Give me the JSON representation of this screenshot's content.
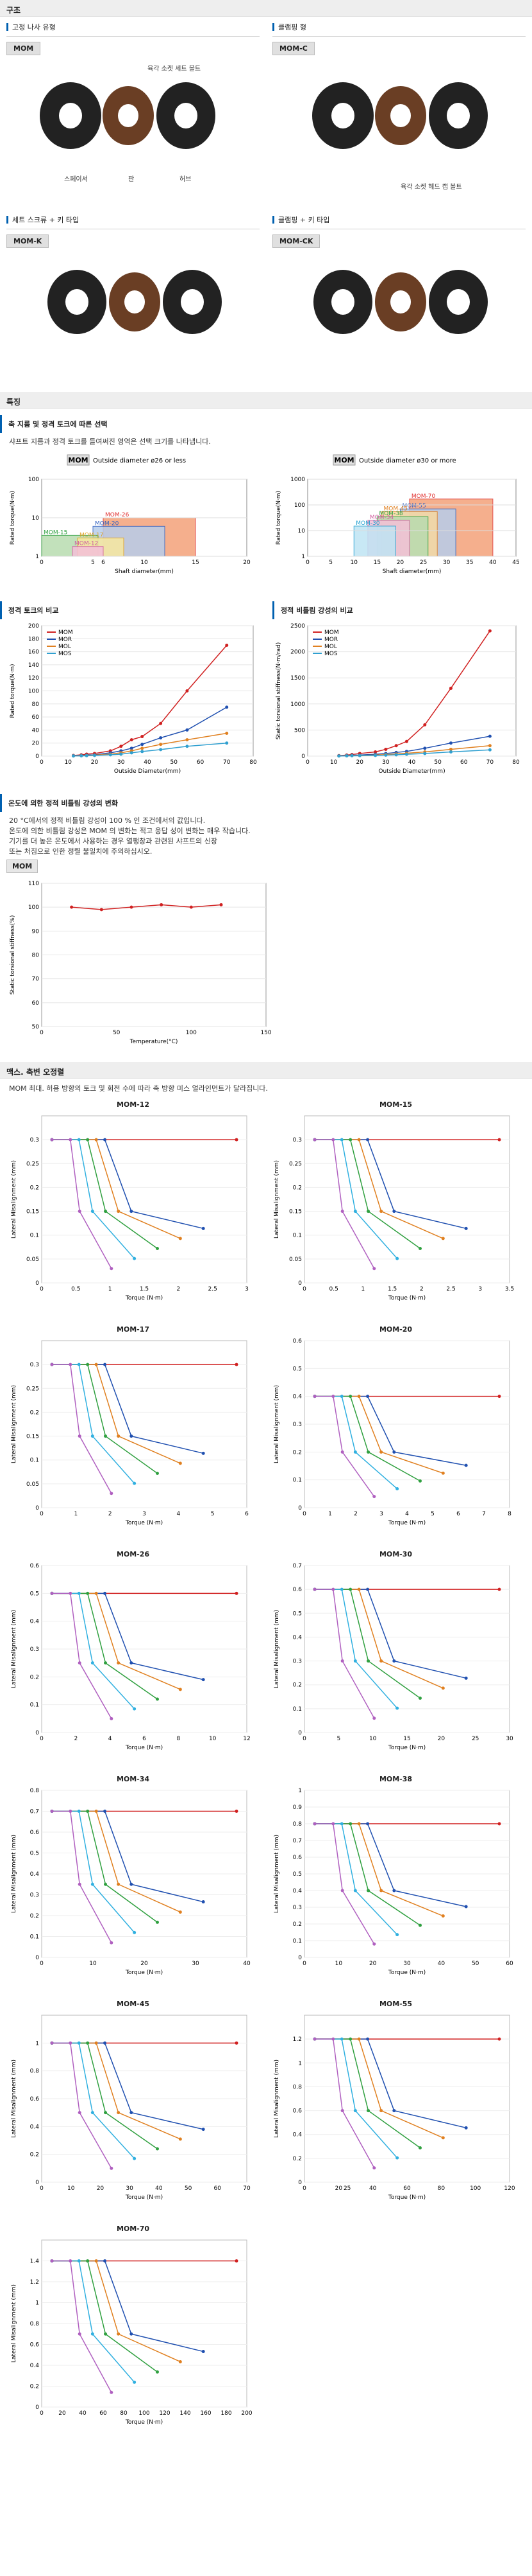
{
  "structure": {
    "section_title": "구조",
    "items": [
      {
        "caption": "고정 나사 유형",
        "tag": "MOM",
        "labels": [
          "육각 소켓 세트 볼트",
          "스페이서",
          "판",
          "허브"
        ]
      },
      {
        "caption": "클램핑 형",
        "tag": "MOM-C",
        "labels": [
          "육각 소켓 헤드 캡 볼트"
        ]
      },
      {
        "caption": "세트 스크류 + 키 타입",
        "tag": "MOM-K",
        "labels": []
      },
      {
        "caption": "클램핑 + 키 타입",
        "tag": "MOM-CK",
        "labels": []
      }
    ]
  },
  "features": {
    "section_title": "특징",
    "sub1": "축 지름 및 정격 토크에 따른 선택",
    "sub1_text": "샤프트 지름과 정격 토크를 들여써진 영역은 선택 크기를 나타냅니다.",
    "sub2": "정격 토크의 비교",
    "sub3": "정적 비틀림 강성의 비교",
    "sub4": "온도에 의한 정적 비틀림 강성의 변화",
    "sub4_text": [
      "20 °C에서의 정적 비틀림 강성이 100 % 인 조건에서의 값입니다.",
      "온도에 의한 비틀림 강성은 MOM 의 변화는 적고 응답 성이 변화는 매우 작습니다.",
      "기기를 더 높은 온도에서 사용하는 경우 열팽창과 관련된 샤프트의 신장",
      "또는 처짐으로 인한 정렬 불일치에 주의하십시오."
    ]
  },
  "selection_small": {
    "chart_data": {
      "type": "bar",
      "title_tag": "MOM",
      "title": "Outside diameter ø26 or less",
      "xlabel": "Shaft diameter(mm)",
      "ylabel": "Rated torque(N·m)",
      "xticks": [
        0,
        5,
        6,
        10,
        15,
        20
      ],
      "yticks": [
        1,
        10,
        100
      ],
      "regions": [
        {
          "name": "MOM-26",
          "x0": 6,
          "x1": 15,
          "y": 10,
          "color": "#f4a27a",
          "line": "#e03030"
        },
        {
          "name": "MOM-20",
          "x0": 5,
          "x1": 12,
          "y": 6,
          "color": "#b7cdea",
          "line": "#3060c0"
        },
        {
          "name": "MOM-15",
          "x0": 0,
          "x1": 5.5,
          "y": 3.5,
          "color": "#b8dcb0",
          "line": "#30a040"
        },
        {
          "name": "MOM-17",
          "x0": 3.5,
          "x1": 8,
          "y": 3,
          "color": "#f8e8a0",
          "line": "#e0a020"
        },
        {
          "name": "MOM-12",
          "x0": 3,
          "x1": 6,
          "y": 1.8,
          "color": "#f4c0d8",
          "line": "#d060a0"
        }
      ]
    }
  },
  "selection_large": {
    "chart_data": {
      "type": "bar",
      "title_tag": "MOM",
      "title": "Outside diameter ø30 or more",
      "xlabel": "Shaft diameter(mm)",
      "ylabel": "Rated torque(N·m)",
      "xticks": [
        0,
        5,
        10,
        15,
        20,
        25,
        30,
        35,
        40,
        45
      ],
      "yticks": [
        1,
        10,
        100,
        1000
      ],
      "regions": [
        {
          "name": "MOM-70",
          "x0": 22,
          "x1": 40,
          "y": 170,
          "color": "#f4a27a",
          "line": "#e03030"
        },
        {
          "name": "MOM-55",
          "x0": 20,
          "x1": 32,
          "y": 70,
          "color": "#b7cdea",
          "line": "#3060c0"
        },
        {
          "name": "MOM-45",
          "x0": 16,
          "x1": 28,
          "y": 55,
          "color": "#f8d8a0",
          "line": "#e08020"
        },
        {
          "name": "MOM-38",
          "x0": 15,
          "x1": 26,
          "y": 35,
          "color": "#b8dcb0",
          "line": "#30a040"
        },
        {
          "name": "MOM-34",
          "x0": 13,
          "x1": 22,
          "y": 25,
          "color": "#f4c0d8",
          "line": "#d060a0"
        },
        {
          "name": "MOM-30",
          "x0": 10,
          "x1": 19,
          "y": 15,
          "color": "#bfe4f4",
          "line": "#20a0d0"
        }
      ]
    }
  },
  "rated_torque": {
    "chart_data": {
      "type": "line",
      "xlabel": "Outside Diameter(mm)",
      "ylabel": "Rated torque(N·m)",
      "xlim": [
        0,
        80
      ],
      "ylim": [
        0,
        200
      ],
      "xticks": [
        0,
        10,
        20,
        30,
        40,
        50,
        60,
        70,
        80
      ],
      "yticks": [
        0,
        20,
        40,
        60,
        80,
        100,
        120,
        140,
        160,
        180,
        200
      ],
      "x": [
        12,
        15,
        17,
        20,
        26,
        30,
        34,
        38,
        45,
        55,
        70
      ],
      "series": [
        {
          "name": "MOM",
          "color": "#d02020",
          "values": [
            1,
            2,
            3,
            4,
            8,
            15,
            25,
            30,
            50,
            100,
            170
          ]
        },
        {
          "name": "MOR",
          "color": "#2050b0",
          "values": [
            0.5,
            1,
            1.5,
            2,
            5,
            8,
            12,
            18,
            28,
            40,
            75
          ]
        },
        {
          "name": "MOL",
          "color": "#e08020",
          "values": [
            0.3,
            0.6,
            1,
            1.5,
            3,
            5,
            8,
            12,
            18,
            25,
            35
          ]
        },
        {
          "name": "MOS",
          "color": "#30a0d0",
          "values": [
            0.2,
            0.4,
            0.6,
            1,
            2,
            3,
            5,
            7,
            10,
            15,
            20
          ]
        }
      ]
    }
  },
  "stiffness": {
    "chart_data": {
      "type": "line",
      "xlabel": "Outside Diameter(mm)",
      "ylabel": "Static torsional stiffness(N·m/rad)",
      "xlim": [
        0,
        80
      ],
      "ylim": [
        0,
        2500
      ],
      "xticks": [
        0,
        10,
        20,
        30,
        40,
        50,
        60,
        70,
        80
      ],
      "x": [
        12,
        15,
        17,
        20,
        26,
        30,
        34,
        38,
        45,
        55,
        70
      ],
      "series": [
        {
          "name": "MOM",
          "color": "#d02020",
          "values": [
            10,
            20,
            30,
            50,
            80,
            130,
            200,
            280,
            600,
            1300,
            2400
          ]
        },
        {
          "name": "MOR",
          "color": "#2050b0",
          "values": [
            5,
            10,
            15,
            20,
            35,
            50,
            70,
            90,
            150,
            250,
            380
          ]
        },
        {
          "name": "MOL",
          "color": "#e08020",
          "values": [
            3,
            6,
            9,
            12,
            20,
            30,
            40,
            55,
            80,
            130,
            200
          ]
        },
        {
          "name": "MOS",
          "color": "#30a0d0",
          "values": [
            2,
            4,
            6,
            8,
            12,
            18,
            25,
            35,
            50,
            80,
            120
          ]
        }
      ]
    }
  },
  "temperature": {
    "tag": "MOM",
    "chart_data": {
      "type": "line",
      "xlabel": "Temperature(°C)",
      "ylabel": "Static torsional stiffness(%)",
      "xlim": [
        0,
        150
      ],
      "ylim": [
        50,
        110
      ],
      "xticks": [
        0,
        50,
        100,
        150
      ],
      "yticks": [
        50,
        60,
        70,
        80,
        90,
        100,
        110
      ],
      "x": [
        20,
        40,
        60,
        80,
        100,
        120
      ],
      "series": [
        {
          "name": "MOM",
          "color": "#d02020",
          "values": [
            100,
            99,
            100,
            101,
            100,
            101
          ]
        }
      ]
    }
  },
  "misalignment": {
    "section_title": "맥스. 축변 오정렬",
    "text": "MOM 최대. 허용 방향의 토크 및 회전 수에 따라 축 방향 미스 얼라인먼트가 달라집니다.",
    "ylabel": "Lateral Misalignment (mm)",
    "xlabel": "Torque (N·m)",
    "charts": [
      {
        "title": "MOM-12",
        "xlim": [
          0,
          3
        ],
        "ylim": [
          0,
          0.35
        ],
        "xticks": [
          0,
          0.5,
          1,
          1.5,
          2,
          2.5,
          3
        ],
        "yticks": [
          0,
          0.05,
          0.1,
          0.15,
          0.2,
          0.25,
          0.3
        ],
        "ymax": 0.3,
        "xmax": 3
      },
      {
        "title": "MOM-15",
        "xlim": [
          0,
          3.5
        ],
        "ylim": [
          0,
          0.35
        ],
        "xticks": [
          0,
          0.5,
          1,
          1.5,
          2,
          2.5,
          3,
          3.5
        ],
        "yticks": [
          0,
          0.05,
          0.1,
          0.15,
          0.2,
          0.25,
          0.3
        ],
        "ymax": 0.3,
        "xmax": 3.5
      },
      {
        "title": "MOM-17",
        "xlim": [
          0,
          6
        ],
        "ylim": [
          0,
          0.35
        ],
        "xticks": [
          0,
          1,
          2,
          3,
          4,
          5,
          6
        ],
        "yticks": [
          0,
          0.05,
          0.1,
          0.15,
          0.2,
          0.25,
          0.3
        ],
        "ymax": 0.3,
        "xmax": 6
      },
      {
        "title": "MOM-20",
        "xlim": [
          0,
          8
        ],
        "ylim": [
          0,
          0.6
        ],
        "xticks": [
          0,
          1,
          2,
          3,
          4,
          5,
          6,
          7,
          8
        ],
        "yticks": [
          0,
          0.1,
          0.2,
          0.3,
          0.4,
          0.5,
          0.6
        ],
        "ymax": 0.4,
        "xmax": 8
      },
      {
        "title": "MOM-26",
        "xlim": [
          0,
          12
        ],
        "ylim": [
          0,
          0.6
        ],
        "xticks": [
          0,
          2,
          4,
          6,
          8,
          10,
          12
        ],
        "yticks": [
          0,
          0.1,
          0.2,
          0.3,
          0.4,
          0.5,
          0.6
        ],
        "ymax": 0.5,
        "xmax": 12
      },
      {
        "title": "MOM-30",
        "xlim": [
          0,
          30
        ],
        "ylim": [
          0,
          0.7
        ],
        "xticks": [
          0,
          5,
          10,
          15,
          20,
          25,
          30
        ],
        "yticks": [
          0,
          0.1,
          0.2,
          0.3,
          0.4,
          0.5,
          0.6,
          0.7
        ],
        "ymax": 0.6,
        "xmax": 30
      },
      {
        "title": "MOM-34",
        "xlim": [
          0,
          40
        ],
        "ylim": [
          0,
          0.8
        ],
        "xticks": [
          0,
          10,
          20,
          30,
          40
        ],
        "yticks": [
          0,
          0.1,
          0.2,
          0.3,
          0.4,
          0.5,
          0.6,
          0.7,
          0.8
        ],
        "ymax": 0.7,
        "xmax": 40
      },
      {
        "title": "MOM-38",
        "xlim": [
          0,
          60
        ],
        "ylim": [
          0,
          1
        ],
        "xticks": [
          0,
          10,
          20,
          30,
          40,
          50,
          60
        ],
        "yticks": [
          0,
          0.1,
          0.2,
          0.3,
          0.4,
          0.5,
          0.6,
          0.7,
          0.8,
          0.9,
          1
        ],
        "ymax": 0.8,
        "xmax": 60
      },
      {
        "title": "MOM-45",
        "xlim": [
          0,
          70
        ],
        "ylim": [
          0,
          1.2
        ],
        "xticks": [
          0,
          10,
          20,
          30,
          40,
          50,
          60,
          70
        ],
        "yticks": [
          0,
          0.2,
          0.4,
          0.6,
          0.8,
          1
        ],
        "ymax": 1.0,
        "xmax": 70
      },
      {
        "title": "MOM-55",
        "xlim": [
          0,
          120
        ],
        "ylim": [
          0,
          1.4
        ],
        "xticks": [
          0,
          20,
          25,
          40,
          60,
          80,
          100,
          120
        ],
        "yticks": [
          0,
          0.2,
          0.4,
          0.6,
          0.8,
          1,
          1.2
        ],
        "ymax": 1.2,
        "xmax": 120
      },
      {
        "title": "MOM-70",
        "xlim": [
          0,
          200
        ],
        "ylim": [
          0,
          1.6
        ],
        "xticks": [
          0,
          20,
          40,
          60,
          80,
          100,
          120,
          140,
          160,
          180,
          200
        ],
        "yticks": [
          0,
          0.2,
          0.4,
          0.6,
          0.8,
          1,
          1.2,
          1.4
        ],
        "ymax": 1.4,
        "xmax": 200
      }
    ],
    "series_colors": [
      "#d02020",
      "#2050b0",
      "#e08020",
      "#30a040",
      "#30b0e0",
      "#b060c0"
    ]
  }
}
